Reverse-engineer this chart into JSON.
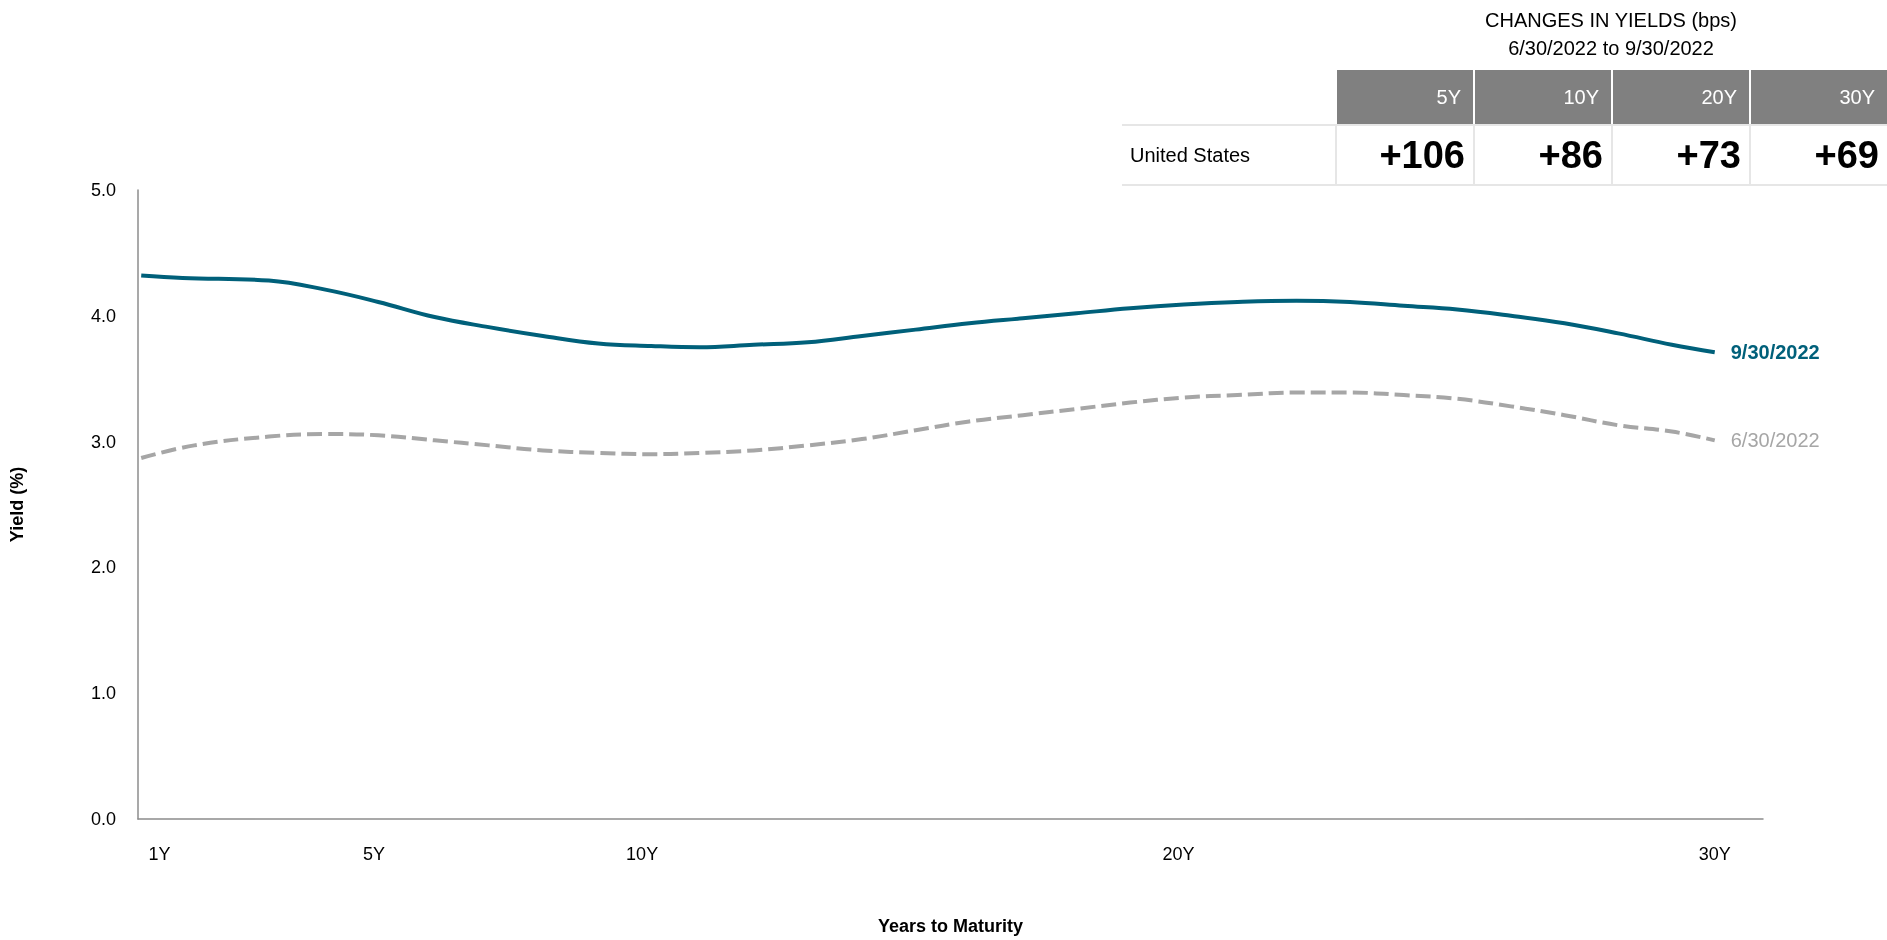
{
  "chart_data": [
    {
      "type": "line",
      "xlabel": "Years to Maturity",
      "ylabel": "Yield (%)",
      "legend": false,
      "grid": false,
      "xlim": [
        0.6,
        30.9
      ],
      "xticks": [
        {
          "value": 1,
          "label": "1Y"
        },
        {
          "value": 5,
          "label": "5Y"
        },
        {
          "value": 10,
          "label": "10Y"
        },
        {
          "value": 20,
          "label": "20Y"
        },
        {
          "value": 30,
          "label": "30Y"
        }
      ],
      "ylim": [
        0,
        5
      ],
      "yticks": [
        {
          "value": 0,
          "label": "0.0"
        },
        {
          "value": 1,
          "label": "1.0"
        },
        {
          "value": 2,
          "label": "2.0"
        },
        {
          "value": 3,
          "label": "3.0"
        },
        {
          "value": 4,
          "label": "4.0"
        },
        {
          "value": 5,
          "label": "5.0"
        }
      ],
      "marker": "none",
      "series": [
        {
          "name": "9/30/2022",
          "color": "#00607a",
          "line_style": "solid",
          "x": [
            0.66,
            1.43,
            3.04,
            4.07,
            5.08,
            6.13,
            7.14,
            8.15,
            9.18,
            10.17,
            11.07,
            12.08,
            13.09,
            14.1,
            15.1,
            16.1,
            17.1,
            18.1,
            19.1,
            20.1,
            21.1,
            22.2,
            23.2,
            24.2,
            25.2,
            26.2,
            27.2,
            28.2,
            29.2,
            30
          ],
          "values": [
            4.32,
            4.3,
            4.28,
            4.21,
            4.11,
            3.99,
            3.91,
            3.84,
            3.78,
            3.76,
            3.75,
            3.77,
            3.79,
            3.84,
            3.89,
            3.94,
            3.98,
            4.02,
            4.06,
            4.09,
            4.11,
            4.12,
            4.11,
            4.08,
            4.05,
            4.0,
            3.94,
            3.86,
            3.77,
            3.71
          ]
        },
        {
          "name": "6/30/2022",
          "color": "#a6a6a6",
          "line_style": "dashed",
          "x": [
            0.66,
            1.65,
            3.04,
            4.07,
            5.08,
            6.13,
            7.14,
            8.15,
            9.18,
            10.17,
            11.07,
            12.08,
            13.09,
            14.1,
            15.1,
            16.1,
            17.1,
            18.1,
            19.1,
            20.1,
            21.1,
            22.2,
            23.2,
            24.2,
            25.2,
            26.2,
            27.2,
            28.2,
            29.2,
            30
          ],
          "values": [
            2.87,
            2.97,
            3.04,
            3.06,
            3.05,
            3.01,
            2.97,
            2.93,
            2.91,
            2.9,
            2.91,
            2.93,
            2.97,
            3.02,
            3.09,
            3.16,
            3.21,
            3.26,
            3.31,
            3.35,
            3.37,
            3.39,
            3.39,
            3.37,
            3.34,
            3.28,
            3.21,
            3.13,
            3.08,
            3.01
          ]
        }
      ]
    },
    {
      "type": "other",
      "title": "CHANGES IN YIELDS (bps)",
      "subtitle": "6/30/2022 to 9/30/2022",
      "categories": [
        "5Y",
        "10Y",
        "20Y",
        "30Y"
      ],
      "y_categories": [
        "United States"
      ],
      "cell_labels": [
        [
          "+106",
          "+86",
          "+73",
          "+69"
        ]
      ]
    }
  ]
}
